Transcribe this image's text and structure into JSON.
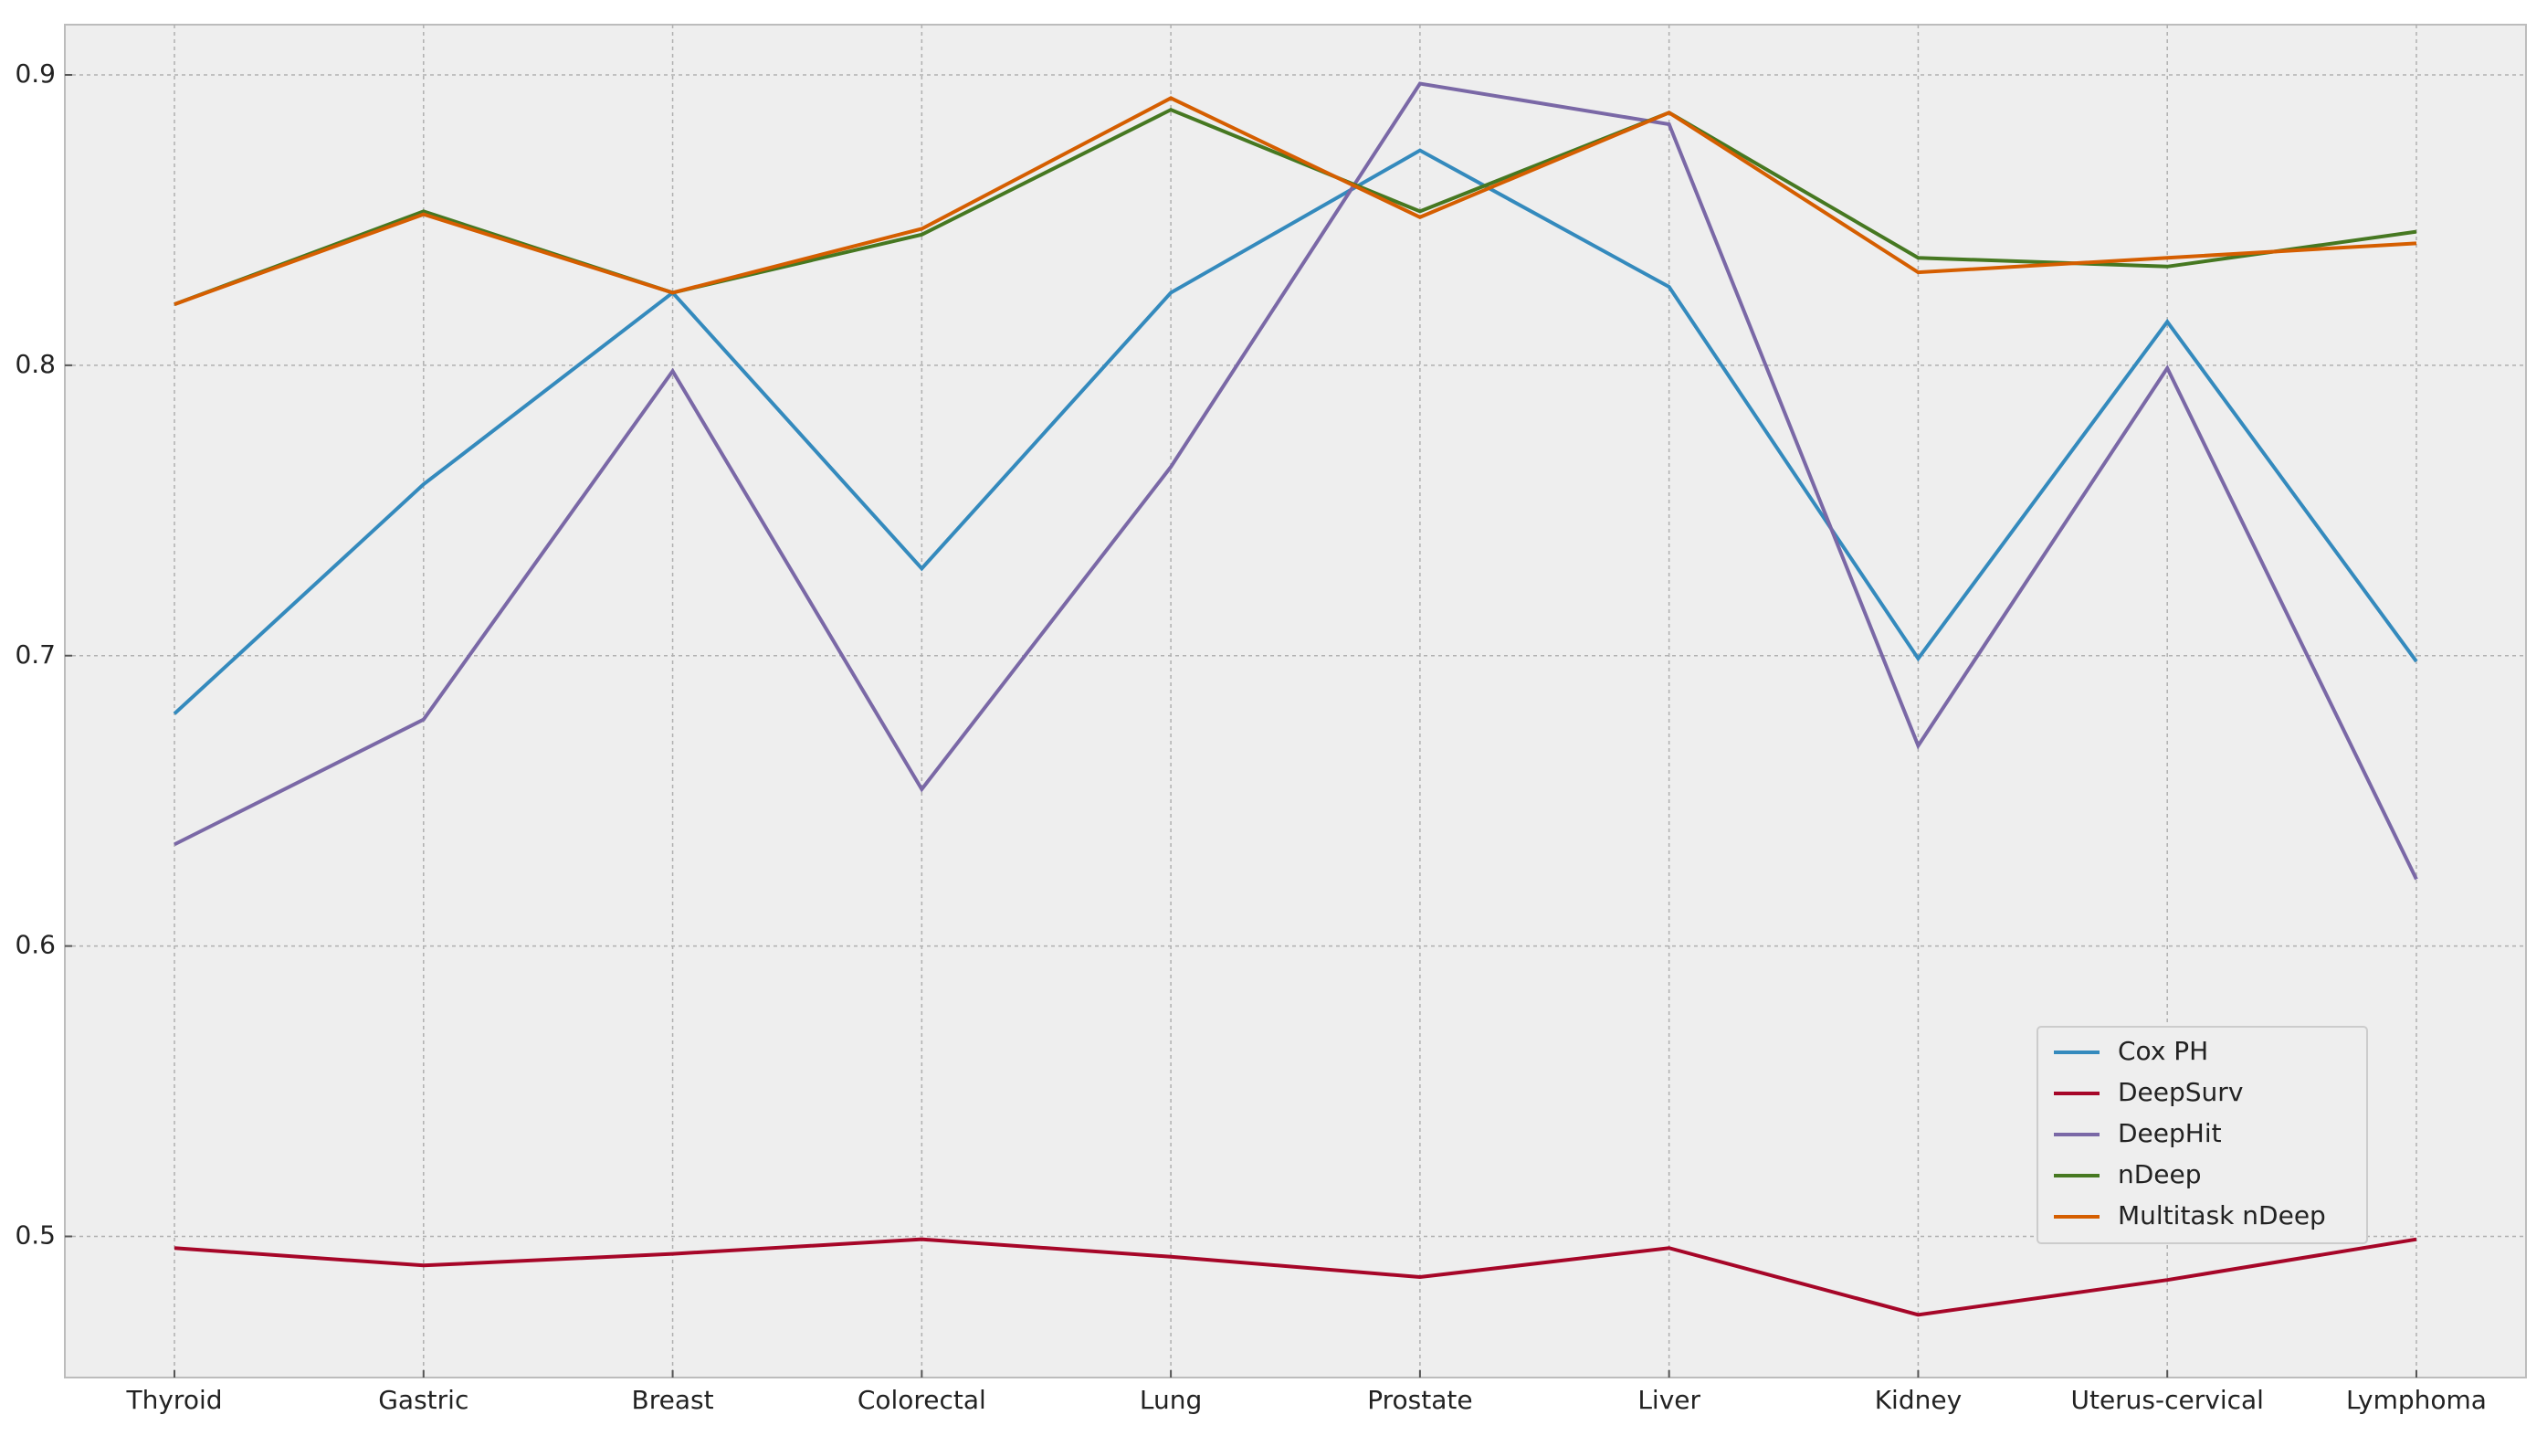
{
  "chart_data": {
    "type": "line",
    "categories": [
      "Thyroid",
      "Gastric",
      "Breast",
      "Colorectal",
      "Lung",
      "Prostate",
      "Liver",
      "Kidney",
      "Uterus-cervical",
      "Lymphoma"
    ],
    "series": [
      {
        "name": "Cox PH",
        "color": "#348ABD",
        "values": [
          0.68,
          0.759,
          0.825,
          0.73,
          0.825,
          0.874,
          0.827,
          0.699,
          0.815,
          0.698
        ]
      },
      {
        "name": "DeepSurv",
        "color": "#A60628",
        "values": [
          0.496,
          0.49,
          0.494,
          0.499,
          0.493,
          0.486,
          0.496,
          0.473,
          0.485,
          0.499
        ]
      },
      {
        "name": "DeepHit",
        "color": "#7A68A6",
        "values": [
          0.635,
          0.678,
          0.798,
          0.654,
          0.765,
          0.897,
          0.883,
          0.669,
          0.799,
          0.623
        ]
      },
      {
        "name": "nDeep",
        "color": "#467821",
        "values": [
          0.821,
          0.853,
          0.825,
          0.845,
          0.888,
          0.853,
          0.887,
          0.837,
          0.834,
          0.846
        ]
      },
      {
        "name": "Multitask nDeep",
        "color": "#D55E00",
        "values": [
          0.821,
          0.852,
          0.825,
          0.847,
          0.892,
          0.851,
          0.887,
          0.832,
          0.837,
          0.842
        ]
      }
    ],
    "ylim": [
      0.4514,
      0.9173
    ],
    "yticks": [
      0.5,
      0.6,
      0.7,
      0.8,
      0.9
    ],
    "grid": true,
    "legend": "lower right"
  }
}
